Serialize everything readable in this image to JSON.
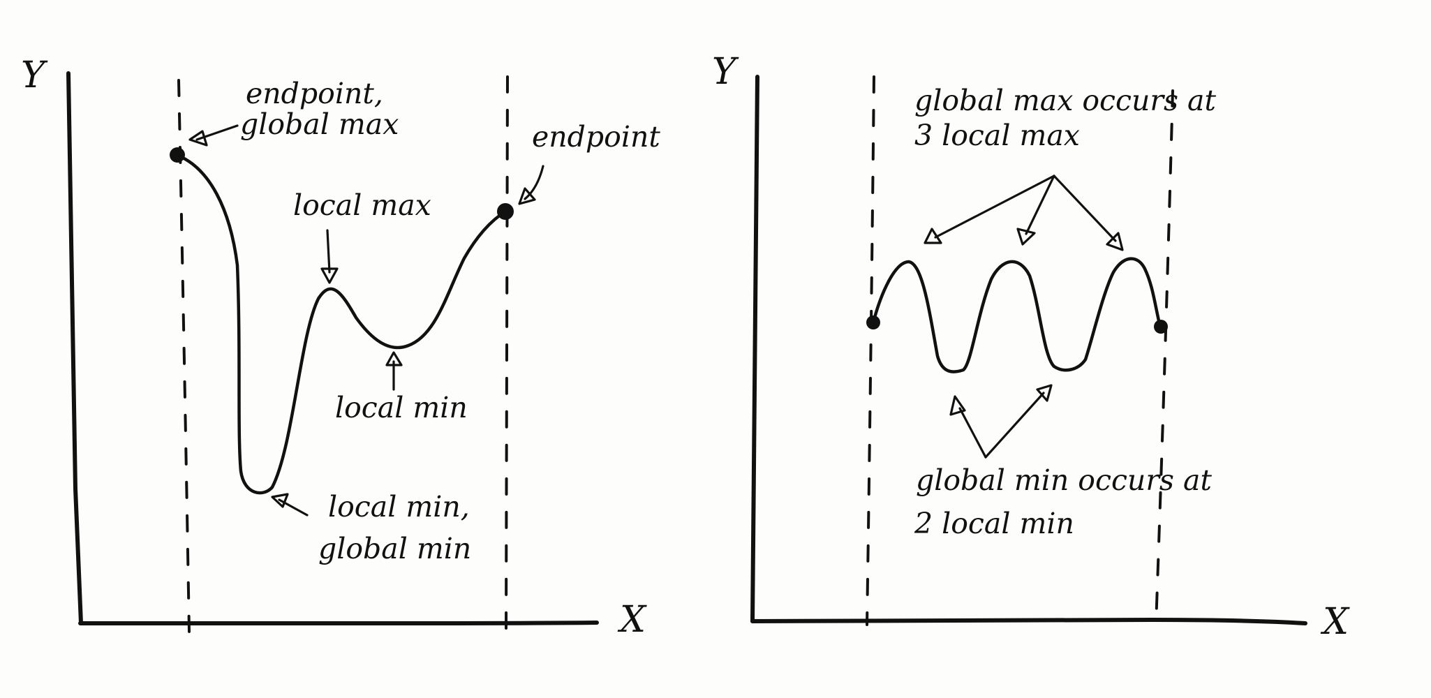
{
  "left_panel": {
    "y_axis_label": "Y",
    "x_axis_label": "X",
    "annotations": {
      "endpoint_global_max_line1": "endpoint,",
      "endpoint_global_max_line2": "global max",
      "endpoint_right": "endpoint",
      "local_max": "local max",
      "local_min": "local min",
      "local_min_global_min_line1": "local min,",
      "local_min_global_min_line2": "global min"
    }
  },
  "right_panel": {
    "y_axis_label": "Y",
    "x_axis_label": "X",
    "annotations": {
      "global_max_line1": "global max occurs at",
      "global_max_line2": "3 local max",
      "global_min_line1": "global min occurs at",
      "global_min_line2": "2 local min"
    }
  }
}
